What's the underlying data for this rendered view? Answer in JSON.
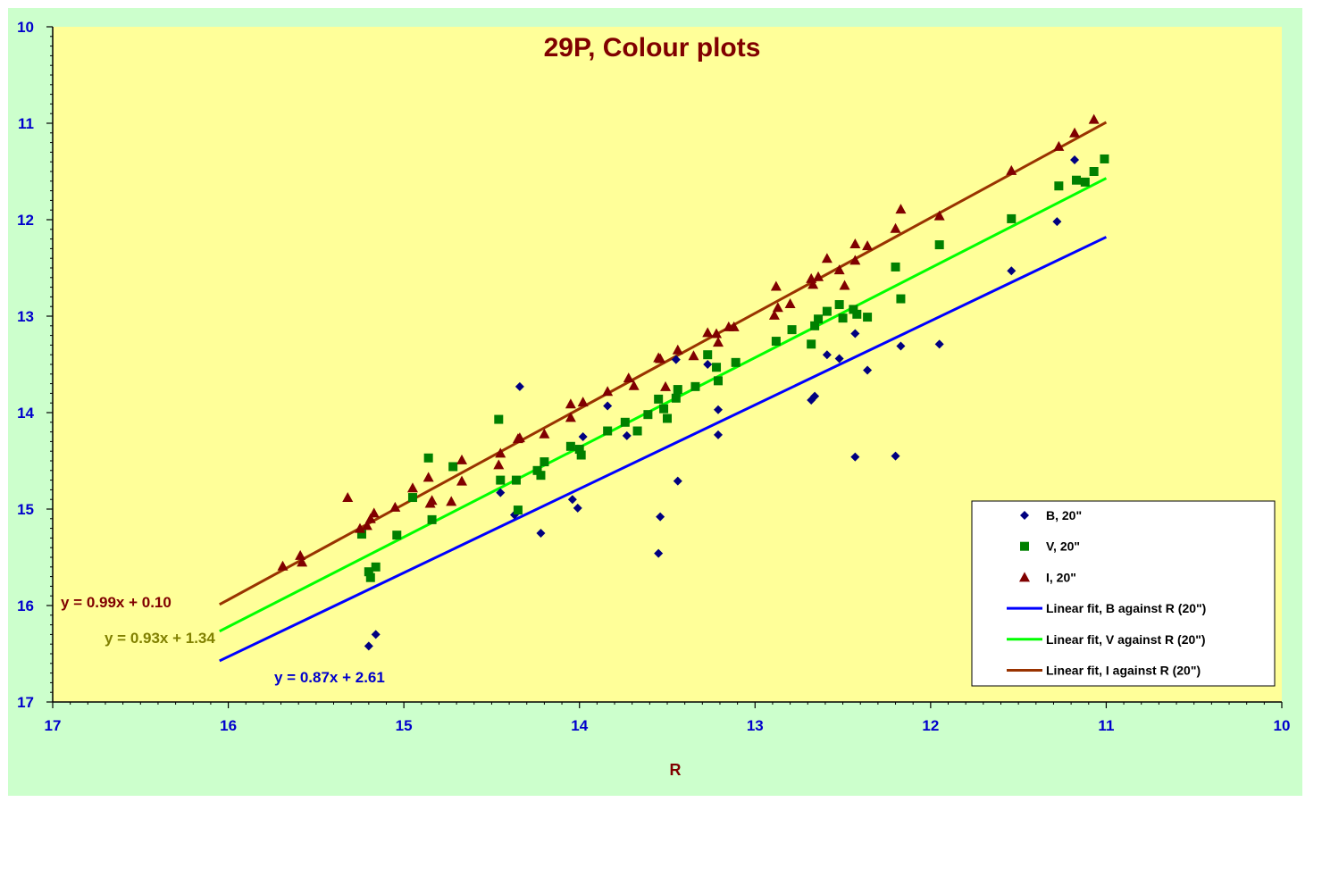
{
  "chart_data": {
    "type": "scatter",
    "title": "29P, Colour plots",
    "xlabel": "R",
    "ylabel": "",
    "xlim": [
      17,
      10
    ],
    "ylim": [
      17,
      10
    ],
    "x_reversed": true,
    "y_reversed": true,
    "x_ticks": [
      "17",
      "16",
      "15",
      "14",
      "13",
      "12",
      "11",
      "10"
    ],
    "y_ticks": [
      "10",
      "11",
      "12",
      "13",
      "14",
      "15",
      "16",
      "17"
    ],
    "grid": false,
    "legend_position": "bottom-right",
    "colors": {
      "outer_background": "#ccffcc",
      "plot_background": "#ffff99",
      "B": "#000080",
      "V": "#008000",
      "I": "#800000",
      "fit_B": "#0000ff",
      "fit_V": "#00ff00",
      "fit_I": "#993300",
      "eq_I": "#800000",
      "eq_V": "#808000",
      "eq_B": "#0000cc"
    },
    "series": [
      {
        "name": "B, 20\"",
        "marker": "diamond",
        "points": [
          [
            15.2,
            16.42
          ],
          [
            15.16,
            16.3
          ],
          [
            14.45,
            14.83
          ],
          [
            14.37,
            15.06
          ],
          [
            14.34,
            13.73
          ],
          [
            14.22,
            15.25
          ],
          [
            14.04,
            14.9
          ],
          [
            14.01,
            14.99
          ],
          [
            13.98,
            14.25
          ],
          [
            13.84,
            13.93
          ],
          [
            13.73,
            14.24
          ],
          [
            13.55,
            15.46
          ],
          [
            13.54,
            15.08
          ],
          [
            13.45,
            13.45
          ],
          [
            13.44,
            14.71
          ],
          [
            13.27,
            13.5
          ],
          [
            13.21,
            13.97
          ],
          [
            13.21,
            14.23
          ],
          [
            12.68,
            13.87
          ],
          [
            12.66,
            13.83
          ],
          [
            12.59,
            13.4
          ],
          [
            12.52,
            13.44
          ],
          [
            12.43,
            13.18
          ],
          [
            12.43,
            14.46
          ],
          [
            12.36,
            13.56
          ],
          [
            12.2,
            14.45
          ],
          [
            12.17,
            13.31
          ],
          [
            11.95,
            13.29
          ],
          [
            11.54,
            12.53
          ],
          [
            11.28,
            12.02
          ],
          [
            11.18,
            11.38
          ]
        ]
      },
      {
        "name": "V, 20\"",
        "marker": "square",
        "points": [
          [
            15.24,
            15.26
          ],
          [
            15.2,
            15.65
          ],
          [
            15.19,
            15.71
          ],
          [
            15.16,
            15.6
          ],
          [
            15.04,
            15.27
          ],
          [
            14.95,
            14.88
          ],
          [
            14.86,
            14.47
          ],
          [
            14.84,
            15.11
          ],
          [
            14.72,
            14.56
          ],
          [
            14.46,
            14.07
          ],
          [
            14.45,
            14.7
          ],
          [
            14.36,
            14.7
          ],
          [
            14.35,
            15.01
          ],
          [
            14.24,
            14.6
          ],
          [
            14.22,
            14.65
          ],
          [
            14.2,
            14.51
          ],
          [
            14.05,
            14.35
          ],
          [
            14.0,
            14.38
          ],
          [
            13.99,
            14.44
          ],
          [
            13.84,
            14.19
          ],
          [
            13.74,
            14.1
          ],
          [
            13.67,
            14.19
          ],
          [
            13.61,
            14.02
          ],
          [
            13.55,
            13.86
          ],
          [
            13.52,
            13.96
          ],
          [
            13.5,
            14.06
          ],
          [
            13.45,
            13.85
          ],
          [
            13.44,
            13.76
          ],
          [
            13.34,
            13.73
          ],
          [
            13.27,
            13.4
          ],
          [
            13.22,
            13.53
          ],
          [
            13.21,
            13.67
          ],
          [
            13.11,
            13.48
          ],
          [
            12.88,
            13.26
          ],
          [
            12.79,
            13.14
          ],
          [
            12.68,
            13.29
          ],
          [
            12.66,
            13.1
          ],
          [
            12.64,
            13.03
          ],
          [
            12.59,
            12.95
          ],
          [
            12.52,
            12.88
          ],
          [
            12.5,
            13.02
          ],
          [
            12.44,
            12.93
          ],
          [
            12.42,
            12.98
          ],
          [
            12.36,
            13.01
          ],
          [
            12.2,
            12.49
          ],
          [
            12.17,
            12.82
          ],
          [
            11.95,
            12.26
          ],
          [
            11.54,
            11.99
          ],
          [
            11.27,
            11.65
          ],
          [
            11.17,
            11.59
          ],
          [
            11.12,
            11.61
          ],
          [
            11.07,
            11.5
          ],
          [
            11.01,
            11.37
          ]
        ]
      },
      {
        "name": "I, 20\"",
        "marker": "triangle",
        "points": [
          [
            15.69,
            15.59
          ],
          [
            15.59,
            15.48
          ],
          [
            15.58,
            15.55
          ],
          [
            15.32,
            14.88
          ],
          [
            15.25,
            15.2
          ],
          [
            15.21,
            15.17
          ],
          [
            15.19,
            15.1
          ],
          [
            15.17,
            15.04
          ],
          [
            15.05,
            14.98
          ],
          [
            14.95,
            14.78
          ],
          [
            14.86,
            14.67
          ],
          [
            14.85,
            14.94
          ],
          [
            14.84,
            14.91
          ],
          [
            14.73,
            14.92
          ],
          [
            14.67,
            14.49
          ],
          [
            14.67,
            14.71
          ],
          [
            14.46,
            14.54
          ],
          [
            14.45,
            14.42
          ],
          [
            14.35,
            14.27
          ],
          [
            14.34,
            14.26
          ],
          [
            14.2,
            14.22
          ],
          [
            14.05,
            13.91
          ],
          [
            14.05,
            14.05
          ],
          [
            13.98,
            13.89
          ],
          [
            13.84,
            13.78
          ],
          [
            13.72,
            13.64
          ],
          [
            13.69,
            13.72
          ],
          [
            13.55,
            13.43
          ],
          [
            13.54,
            13.44
          ],
          [
            13.51,
            13.73
          ],
          [
            13.44,
            13.35
          ],
          [
            13.35,
            13.41
          ],
          [
            13.27,
            13.17
          ],
          [
            13.22,
            13.18
          ],
          [
            13.21,
            13.27
          ],
          [
            13.15,
            13.11
          ],
          [
            13.12,
            13.11
          ],
          [
            12.89,
            12.99
          ],
          [
            12.88,
            12.69
          ],
          [
            12.87,
            12.91
          ],
          [
            12.8,
            12.87
          ],
          [
            12.68,
            12.61
          ],
          [
            12.67,
            12.67
          ],
          [
            12.64,
            12.59
          ],
          [
            12.59,
            12.4
          ],
          [
            12.52,
            12.52
          ],
          [
            12.49,
            12.68
          ],
          [
            12.43,
            12.25
          ],
          [
            12.43,
            12.42
          ],
          [
            12.36,
            12.27
          ],
          [
            12.2,
            12.09
          ],
          [
            12.17,
            11.89
          ],
          [
            11.95,
            11.96
          ],
          [
            11.54,
            11.49
          ],
          [
            11.27,
            11.24
          ],
          [
            11.18,
            11.1
          ],
          [
            11.07,
            10.96
          ]
        ]
      }
    ],
    "fits": [
      {
        "name": "Linear fit, B against R (20\")",
        "slope": 0.87,
        "intercept": 2.61,
        "x_range": [
          16.05,
          11.0
        ],
        "equation": "y = 0.87x + 2.61"
      },
      {
        "name": "Linear fit, V against R (20\")",
        "slope": 0.93,
        "intercept": 1.34,
        "x_range": [
          16.05,
          11.0
        ],
        "equation": "y = 0.93x + 1.34"
      },
      {
        "name": "Linear fit, I against R (20\")",
        "slope": 0.99,
        "intercept": 0.1,
        "x_range": [
          16.05,
          11.0
        ],
        "equation": "y = 0.99x + 0.10"
      }
    ]
  }
}
